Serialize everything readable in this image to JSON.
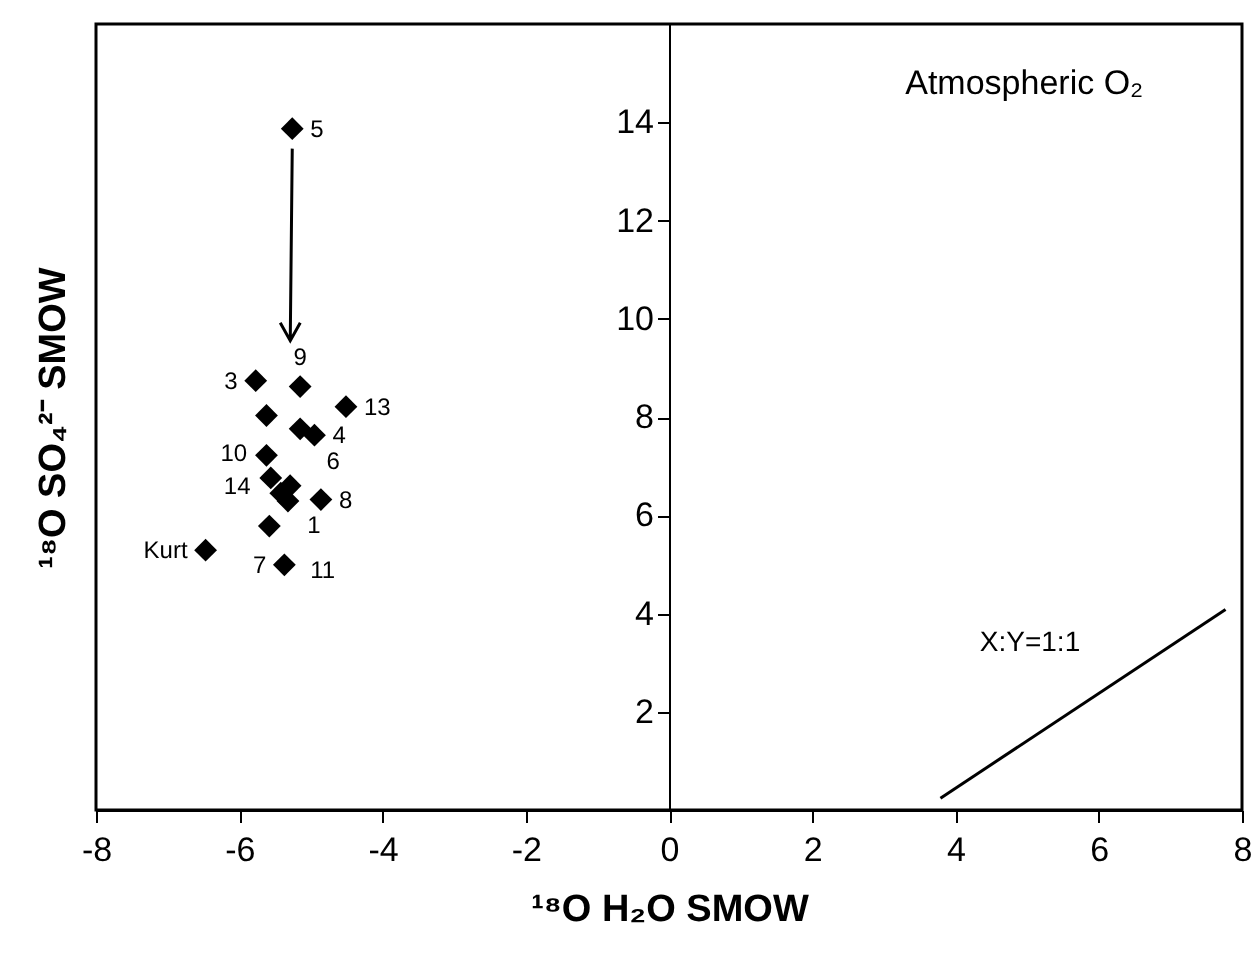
{
  "chart_data": {
    "type": "scatter",
    "xlabel": "¹⁸O H₂O SMOW",
    "ylabel": "¹⁸O SO₄²⁻ SMOW",
    "xlim": [
      -8,
      8
    ],
    "xticks": [
      -8,
      -6,
      -4,
      -2,
      0,
      2,
      4,
      6,
      8
    ],
    "ylim": [
      0,
      16
    ],
    "yticks": [
      2,
      4,
      6,
      8,
      10,
      12,
      14
    ],
    "grid": false,
    "annotations": [
      "Atmospheric O₂",
      "X:Y=1:1",
      {
        "text": "5",
        "x": -5.26,
        "y": 13.87
      },
      {
        "text": "3",
        "x": -5.77,
        "y": 8.74
      },
      {
        "text": "9",
        "x": -5.15,
        "y": 8.62
      },
      {
        "text": "13",
        "x": -4.51,
        "y": 8.21
      },
      {
        "text": "6",
        "x": -5.15,
        "y": 7.76
      },
      {
        "text": "4",
        "x": -4.95,
        "y": 7.63
      },
      {
        "text": "14",
        "x": -5.29,
        "y": 6.6
      },
      {
        "text": "1",
        "x": -5.42,
        "y": 6.45
      },
      {
        "text": "10",
        "x": -5.32,
        "y": 6.29
      },
      {
        "text": "8",
        "x": -4.86,
        "y": 6.32
      },
      {
        "text": "11",
        "x": -5.58,
        "y": 5.78
      },
      {
        "text": "Kurt",
        "x": -6.47,
        "y": 5.29
      },
      {
        "text": "7",
        "x": -5.37,
        "y": 4.99
      }
    ],
    "series": [
      {
        "marker": "diamond",
        "color": "#000000",
        "x": [
          -5.26,
          -5.77,
          -5.15,
          -4.51,
          -5.62,
          -5.15,
          -4.95,
          -5.62,
          -5.56,
          -5.29,
          -5.42,
          -5.32,
          -4.86,
          -5.58,
          -6.47,
          -5.37
        ],
        "values": [
          13.87,
          8.74,
          8.62,
          8.21,
          8.03,
          7.76,
          7.63,
          7.22,
          6.76,
          6.6,
          6.45,
          6.29,
          6.32,
          5.78,
          5.29,
          4.99
        ]
      },
      {
        "type": "line",
        "color": "#000000",
        "x": [
          3.79,
          7.77
        ],
        "values": [
          0.24,
          4.08
        ]
      }
    ]
  }
}
